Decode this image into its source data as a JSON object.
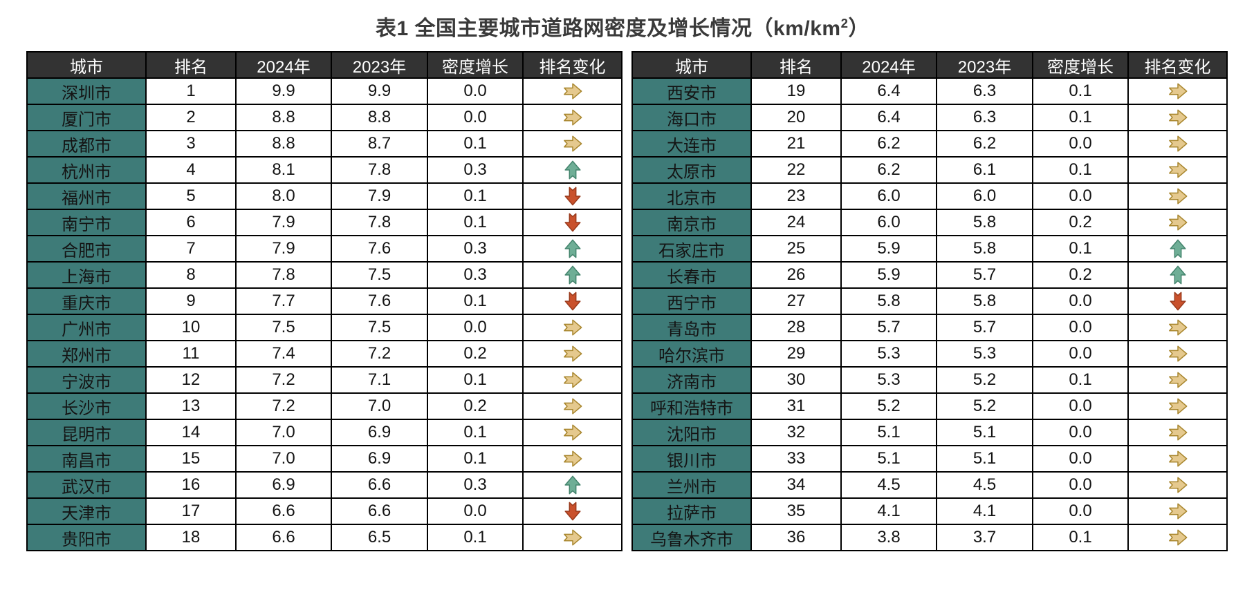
{
  "title": {
    "prefix": "表1 全国主要城市道路网密度及增长情况（km/km",
    "superscript": "2",
    "suffix": "）"
  },
  "columns": [
    "城市",
    "排名",
    "2024年",
    "2023年",
    "密度增长",
    "排名变化"
  ],
  "colors": {
    "header_bg": "#333333",
    "header_text": "#ffffff",
    "city_bg": "#3E7B78",
    "city_text": "#F0F0F0",
    "grid_border": "#000000",
    "title_text": "#3a3a3a",
    "arrow_right_fill": "#E5C98E",
    "arrow_right_stroke": "#A9872F",
    "arrow_up_fill": "#6FAE96",
    "arrow_up_stroke": "#44846D",
    "arrow_down_fill": "#C9512C",
    "arrow_down_stroke": "#9A3A1C"
  },
  "tables": [
    {
      "rows": [
        {
          "city": "深圳市",
          "rank": "1",
          "y2024": "9.9",
          "y2023": "9.9",
          "growth": "0.0",
          "change": "right"
        },
        {
          "city": "厦门市",
          "rank": "2",
          "y2024": "8.8",
          "y2023": "8.8",
          "growth": "0.0",
          "change": "right"
        },
        {
          "city": "成都市",
          "rank": "3",
          "y2024": "8.8",
          "y2023": "8.7",
          "growth": "0.1",
          "change": "right"
        },
        {
          "city": "杭州市",
          "rank": "4",
          "y2024": "8.1",
          "y2023": "7.8",
          "growth": "0.3",
          "change": "up"
        },
        {
          "city": "福州市",
          "rank": "5",
          "y2024": "8.0",
          "y2023": "7.9",
          "growth": "0.1",
          "change": "down"
        },
        {
          "city": "南宁市",
          "rank": "6",
          "y2024": "7.9",
          "y2023": "7.8",
          "growth": "0.1",
          "change": "down"
        },
        {
          "city": "合肥市",
          "rank": "7",
          "y2024": "7.9",
          "y2023": "7.6",
          "growth": "0.3",
          "change": "up"
        },
        {
          "city": "上海市",
          "rank": "8",
          "y2024": "7.8",
          "y2023": "7.5",
          "growth": "0.3",
          "change": "up"
        },
        {
          "city": "重庆市",
          "rank": "9",
          "y2024": "7.7",
          "y2023": "7.6",
          "growth": "0.1",
          "change": "down"
        },
        {
          "city": "广州市",
          "rank": "10",
          "y2024": "7.5",
          "y2023": "7.5",
          "growth": "0.0",
          "change": "right"
        },
        {
          "city": "郑州市",
          "rank": "11",
          "y2024": "7.4",
          "y2023": "7.2",
          "growth": "0.2",
          "change": "right"
        },
        {
          "city": "宁波市",
          "rank": "12",
          "y2024": "7.2",
          "y2023": "7.1",
          "growth": "0.1",
          "change": "right"
        },
        {
          "city": "长沙市",
          "rank": "13",
          "y2024": "7.2",
          "y2023": "7.0",
          "growth": "0.2",
          "change": "right"
        },
        {
          "city": "昆明市",
          "rank": "14",
          "y2024": "7.0",
          "y2023": "6.9",
          "growth": "0.1",
          "change": "right"
        },
        {
          "city": "南昌市",
          "rank": "15",
          "y2024": "7.0",
          "y2023": "6.9",
          "growth": "0.1",
          "change": "right"
        },
        {
          "city": "武汉市",
          "rank": "16",
          "y2024": "6.9",
          "y2023": "6.6",
          "growth": "0.3",
          "change": "up"
        },
        {
          "city": "天津市",
          "rank": "17",
          "y2024": "6.6",
          "y2023": "6.6",
          "growth": "0.0",
          "change": "down"
        },
        {
          "city": "贵阳市",
          "rank": "18",
          "y2024": "6.6",
          "y2023": "6.5",
          "growth": "0.1",
          "change": "right"
        }
      ]
    },
    {
      "rows": [
        {
          "city": "西安市",
          "rank": "19",
          "y2024": "6.4",
          "y2023": "6.3",
          "growth": "0.1",
          "change": "right"
        },
        {
          "city": "海口市",
          "rank": "20",
          "y2024": "6.4",
          "y2023": "6.3",
          "growth": "0.1",
          "change": "right"
        },
        {
          "city": "大连市",
          "rank": "21",
          "y2024": "6.2",
          "y2023": "6.2",
          "growth": "0.0",
          "change": "right"
        },
        {
          "city": "太原市",
          "rank": "22",
          "y2024": "6.2",
          "y2023": "6.1",
          "growth": "0.1",
          "change": "right"
        },
        {
          "city": "北京市",
          "rank": "23",
          "y2024": "6.0",
          "y2023": "6.0",
          "growth": "0.0",
          "change": "right"
        },
        {
          "city": "南京市",
          "rank": "24",
          "y2024": "6.0",
          "y2023": "5.8",
          "growth": "0.2",
          "change": "right"
        },
        {
          "city": "石家庄市",
          "rank": "25",
          "y2024": "5.9",
          "y2023": "5.8",
          "growth": "0.1",
          "change": "up"
        },
        {
          "city": "长春市",
          "rank": "26",
          "y2024": "5.9",
          "y2023": "5.7",
          "growth": "0.2",
          "change": "up"
        },
        {
          "city": "西宁市",
          "rank": "27",
          "y2024": "5.8",
          "y2023": "5.8",
          "growth": "0.0",
          "change": "down"
        },
        {
          "city": "青岛市",
          "rank": "28",
          "y2024": "5.7",
          "y2023": "5.7",
          "growth": "0.0",
          "change": "right"
        },
        {
          "city": "哈尔滨市",
          "rank": "29",
          "y2024": "5.3",
          "y2023": "5.3",
          "growth": "0.0",
          "change": "right"
        },
        {
          "city": "济南市",
          "rank": "30",
          "y2024": "5.3",
          "y2023": "5.2",
          "growth": "0.1",
          "change": "right"
        },
        {
          "city": "呼和浩特市",
          "rank": "31",
          "y2024": "5.2",
          "y2023": "5.2",
          "growth": "0.0",
          "change": "right"
        },
        {
          "city": "沈阳市",
          "rank": "32",
          "y2024": "5.1",
          "y2023": "5.1",
          "growth": "0.0",
          "change": "right"
        },
        {
          "city": "银川市",
          "rank": "33",
          "y2024": "5.1",
          "y2023": "5.1",
          "growth": "0.0",
          "change": "right"
        },
        {
          "city": "兰州市",
          "rank": "34",
          "y2024": "4.5",
          "y2023": "4.5",
          "growth": "0.0",
          "change": "right"
        },
        {
          "city": "拉萨市",
          "rank": "35",
          "y2024": "4.1",
          "y2023": "4.1",
          "growth": "0.0",
          "change": "right"
        },
        {
          "city": "乌鲁木齐市",
          "rank": "36",
          "y2024": "3.8",
          "y2023": "3.7",
          "growth": "0.1",
          "change": "right"
        }
      ]
    }
  ]
}
